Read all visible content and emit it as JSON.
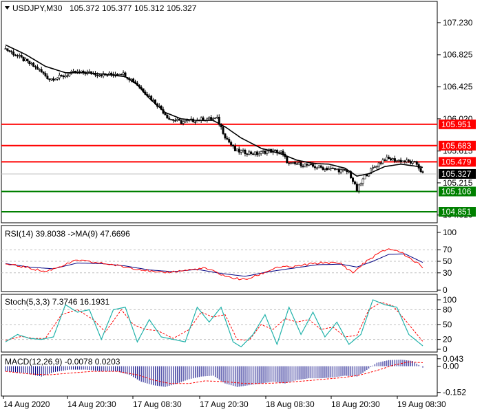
{
  "colors": {
    "background": "#ffffff",
    "frame": "#000000",
    "grid": "#c0c0c0",
    "resistance_line": "#ff0000",
    "support_line": "#008000",
    "resistance_label_bg": "#ff0000",
    "support_label_bg": "#008000",
    "current_price_bg": "#000000",
    "candle": "#000000",
    "ma": "#000000",
    "rsi_line": "#ff0000",
    "rsi_ma": "#000080",
    "stoch_main": "#20b2aa",
    "stoch_signal": "#ff0000",
    "macd_hist": "#000080",
    "macd_signal": "#ff0000"
  },
  "chart_data": {
    "type": "candlestick",
    "title": "USDJPY,M30",
    "ohlc_readout": [
      "105.372",
      "105.377",
      "105.312",
      "105.327"
    ],
    "time_labels": [
      "14 Aug 2020",
      "14 Aug 20:30",
      "17 Aug 08:30",
      "17 Aug 20:30",
      "18 Aug 08:30",
      "18 Aug 20:30",
      "19 Aug 08:30"
    ],
    "price_axis_ticks": [
      "107.230",
      "106.825",
      "106.425",
      "106.020",
      "105.615",
      "105.215",
      "104.810"
    ],
    "price_tick_values": [
      107.23,
      106.825,
      106.425,
      106.02,
      105.615,
      105.215,
      104.81
    ],
    "ylim": [
      104.73,
      107.48
    ],
    "current_price": "105.327",
    "current_price_value": 105.327,
    "levels": [
      {
        "kind": "resistance",
        "value": 105.951,
        "label": "105.951"
      },
      {
        "kind": "resistance",
        "value": 105.683,
        "label": "105.683"
      },
      {
        "kind": "resistance",
        "value": 105.479,
        "label": "105.479"
      },
      {
        "kind": "support",
        "value": 105.106,
        "label": "105.106"
      },
      {
        "kind": "support",
        "value": 104.851,
        "label": "104.851"
      }
    ],
    "price_anchors": [
      [
        0,
        106.9
      ],
      [
        8,
        106.78
      ],
      [
        16,
        106.65
      ],
      [
        22,
        106.52
      ],
      [
        28,
        106.55
      ],
      [
        34,
        106.6
      ],
      [
        42,
        106.6
      ],
      [
        50,
        106.57
      ],
      [
        58,
        106.6
      ],
      [
        64,
        106.5
      ],
      [
        70,
        106.35
      ],
      [
        76,
        106.2
      ],
      [
        82,
        106.02
      ],
      [
        88,
        105.98
      ],
      [
        94,
        106.0
      ],
      [
        100,
        106.02
      ],
      [
        106,
        106.02
      ],
      [
        110,
        105.8
      ],
      [
        115,
        105.62
      ],
      [
        120,
        105.6
      ],
      [
        126,
        105.58
      ],
      [
        132,
        105.62
      ],
      [
        138,
        105.6
      ],
      [
        142,
        105.45
      ],
      [
        148,
        105.45
      ],
      [
        154,
        105.42
      ],
      [
        160,
        105.4
      ],
      [
        166,
        105.38
      ],
      [
        172,
        105.35
      ],
      [
        176,
        105.12
      ],
      [
        180,
        105.3
      ],
      [
        184,
        105.4
      ],
      [
        190,
        105.52
      ],
      [
        196,
        105.5
      ],
      [
        202,
        105.48
      ],
      [
        206,
        105.45
      ],
      [
        209,
        105.33
      ]
    ],
    "moving_average_anchors": [
      [
        0,
        106.95
      ],
      [
        10,
        106.83
      ],
      [
        20,
        106.68
      ],
      [
        30,
        106.6
      ],
      [
        40,
        106.6
      ],
      [
        50,
        106.58
      ],
      [
        60,
        106.55
      ],
      [
        66,
        106.45
      ],
      [
        72,
        106.28
      ],
      [
        80,
        106.1
      ],
      [
        88,
        106.02
      ],
      [
        96,
        106.0
      ],
      [
        104,
        106.0
      ],
      [
        110,
        105.92
      ],
      [
        118,
        105.78
      ],
      [
        128,
        105.65
      ],
      [
        138,
        105.58
      ],
      [
        146,
        105.5
      ],
      [
        154,
        105.46
      ],
      [
        162,
        105.45
      ],
      [
        170,
        105.4
      ],
      [
        176,
        105.3
      ],
      [
        182,
        105.33
      ],
      [
        190,
        105.42
      ],
      [
        198,
        105.45
      ],
      [
        204,
        105.43
      ],
      [
        209,
        105.41
      ]
    ],
    "rsi": {
      "label": "RSI(14) 39.8038  ->MA(9) 47.6696",
      "levels_text": [
        "100",
        "70",
        "50",
        "30",
        "0"
      ],
      "level_values": [
        100,
        70,
        50,
        30,
        0
      ],
      "guide_levels": [
        70,
        50,
        30
      ],
      "anchors": [
        [
          0,
          45
        ],
        [
          10,
          40
        ],
        [
          20,
          32
        ],
        [
          28,
          42
        ],
        [
          36,
          52
        ],
        [
          44,
          48
        ],
        [
          52,
          45
        ],
        [
          60,
          40
        ],
        [
          68,
          36
        ],
        [
          76,
          30
        ],
        [
          84,
          32
        ],
        [
          92,
          35
        ],
        [
          100,
          38
        ],
        [
          106,
          30
        ],
        [
          112,
          22
        ],
        [
          120,
          18
        ],
        [
          128,
          28
        ],
        [
          136,
          40
        ],
        [
          144,
          40
        ],
        [
          152,
          45
        ],
        [
          160,
          48
        ],
        [
          168,
          46
        ],
        [
          174,
          30
        ],
        [
          180,
          48
        ],
        [
          186,
          62
        ],
        [
          192,
          72
        ],
        [
          198,
          66
        ],
        [
          204,
          52
        ],
        [
          209,
          40
        ]
      ],
      "ma_anchors": [
        [
          0,
          46
        ],
        [
          12,
          40
        ],
        [
          24,
          37
        ],
        [
          36,
          47
        ],
        [
          48,
          46
        ],
        [
          60,
          42
        ],
        [
          72,
          35
        ],
        [
          84,
          32
        ],
        [
          96,
          36
        ],
        [
          108,
          29
        ],
        [
          120,
          24
        ],
        [
          132,
          32
        ],
        [
          144,
          38
        ],
        [
          156,
          44
        ],
        [
          168,
          45
        ],
        [
          176,
          40
        ],
        [
          184,
          50
        ],
        [
          192,
          62
        ],
        [
          200,
          63
        ],
        [
          209,
          48
        ]
      ]
    },
    "stochastic": {
      "label": "Stoch(5,3,3) 7.3746 16.1931",
      "levels_text": [
        "100",
        "80",
        "50",
        "20",
        "0"
      ],
      "level_values": [
        100,
        80,
        50,
        20,
        0
      ],
      "guide_levels": [
        80,
        50,
        20
      ],
      "anchors": [
        [
          0,
          15
        ],
        [
          6,
          30
        ],
        [
          12,
          22
        ],
        [
          18,
          20
        ],
        [
          24,
          25
        ],
        [
          30,
          90
        ],
        [
          36,
          75
        ],
        [
          42,
          80
        ],
        [
          48,
          20
        ],
        [
          54,
          80
        ],
        [
          60,
          85
        ],
        [
          66,
          15
        ],
        [
          72,
          60
        ],
        [
          78,
          25
        ],
        [
          84,
          20
        ],
        [
          90,
          15
        ],
        [
          96,
          85
        ],
        [
          102,
          55
        ],
        [
          108,
          85
        ],
        [
          114,
          15
        ],
        [
          118,
          5
        ],
        [
          124,
          30
        ],
        [
          130,
          70
        ],
        [
          136,
          10
        ],
        [
          142,
          85
        ],
        [
          148,
          30
        ],
        [
          154,
          75
        ],
        [
          160,
          25
        ],
        [
          166,
          55
        ],
        [
          172,
          10
        ],
        [
          178,
          30
        ],
        [
          184,
          100
        ],
        [
          190,
          90
        ],
        [
          196,
          85
        ],
        [
          202,
          30
        ],
        [
          209,
          7
        ]
      ],
      "signal_anchors": [
        [
          0,
          18
        ],
        [
          8,
          26
        ],
        [
          14,
          22
        ],
        [
          20,
          22
        ],
        [
          28,
          70
        ],
        [
          36,
          80
        ],
        [
          44,
          60
        ],
        [
          50,
          35
        ],
        [
          58,
          80
        ],
        [
          64,
          50
        ],
        [
          70,
          40
        ],
        [
          76,
          38
        ],
        [
          84,
          22
        ],
        [
          92,
          40
        ],
        [
          98,
          75
        ],
        [
          104,
          65
        ],
        [
          110,
          70
        ],
        [
          116,
          20
        ],
        [
          122,
          18
        ],
        [
          128,
          50
        ],
        [
          134,
          40
        ],
        [
          140,
          62
        ],
        [
          146,
          55
        ],
        [
          152,
          60
        ],
        [
          158,
          40
        ],
        [
          164,
          45
        ],
        [
          170,
          25
        ],
        [
          176,
          28
        ],
        [
          182,
          80
        ],
        [
          188,
          95
        ],
        [
          194,
          88
        ],
        [
          200,
          60
        ],
        [
          209,
          16
        ]
      ]
    },
    "macd": {
      "label": "MACD(12,26,9) -0.0078 0.0203",
      "levels_text": [
        "0.043",
        "0.00",
        "-0.152"
      ],
      "level_values": [
        0.043,
        0.0,
        -0.152
      ],
      "ylim": [
        -0.165,
        0.058
      ],
      "hist_anchors": [
        [
          0,
          -0.03
        ],
        [
          10,
          -0.04
        ],
        [
          18,
          -0.06
        ],
        [
          24,
          -0.035
        ],
        [
          32,
          -0.02
        ],
        [
          40,
          -0.02
        ],
        [
          48,
          -0.03
        ],
        [
          56,
          -0.03
        ],
        [
          62,
          -0.05
        ],
        [
          68,
          -0.09
        ],
        [
          74,
          -0.11
        ],
        [
          80,
          -0.12
        ],
        [
          86,
          -0.1
        ],
        [
          92,
          -0.075
        ],
        [
          98,
          -0.06
        ],
        [
          104,
          -0.055
        ],
        [
          110,
          -0.1
        ],
        [
          116,
          -0.12
        ],
        [
          122,
          -0.11
        ],
        [
          128,
          -0.1
        ],
        [
          134,
          -0.09
        ],
        [
          140,
          -0.1
        ],
        [
          146,
          -0.08
        ],
        [
          152,
          -0.07
        ],
        [
          158,
          -0.07
        ],
        [
          164,
          -0.065
        ],
        [
          170,
          -0.055
        ],
        [
          176,
          -0.06
        ],
        [
          180,
          -0.03
        ],
        [
          186,
          0.02
        ],
        [
          192,
          0.035
        ],
        [
          198,
          0.038
        ],
        [
          204,
          0.03
        ],
        [
          209,
          -0.008
        ]
      ],
      "signal_anchors": [
        [
          0,
          -0.03
        ],
        [
          12,
          -0.045
        ],
        [
          22,
          -0.05
        ],
        [
          32,
          -0.04
        ],
        [
          44,
          -0.03
        ],
        [
          56,
          -0.03
        ],
        [
          66,
          -0.05
        ],
        [
          74,
          -0.08
        ],
        [
          82,
          -0.1
        ],
        [
          92,
          -0.1
        ],
        [
          100,
          -0.085
        ],
        [
          110,
          -0.09
        ],
        [
          120,
          -0.1
        ],
        [
          130,
          -0.1
        ],
        [
          140,
          -0.095
        ],
        [
          150,
          -0.085
        ],
        [
          160,
          -0.075
        ],
        [
          170,
          -0.065
        ],
        [
          178,
          -0.05
        ],
        [
          186,
          -0.025
        ],
        [
          194,
          0.005
        ],
        [
          202,
          0.025
        ],
        [
          209,
          0.02
        ]
      ]
    }
  }
}
